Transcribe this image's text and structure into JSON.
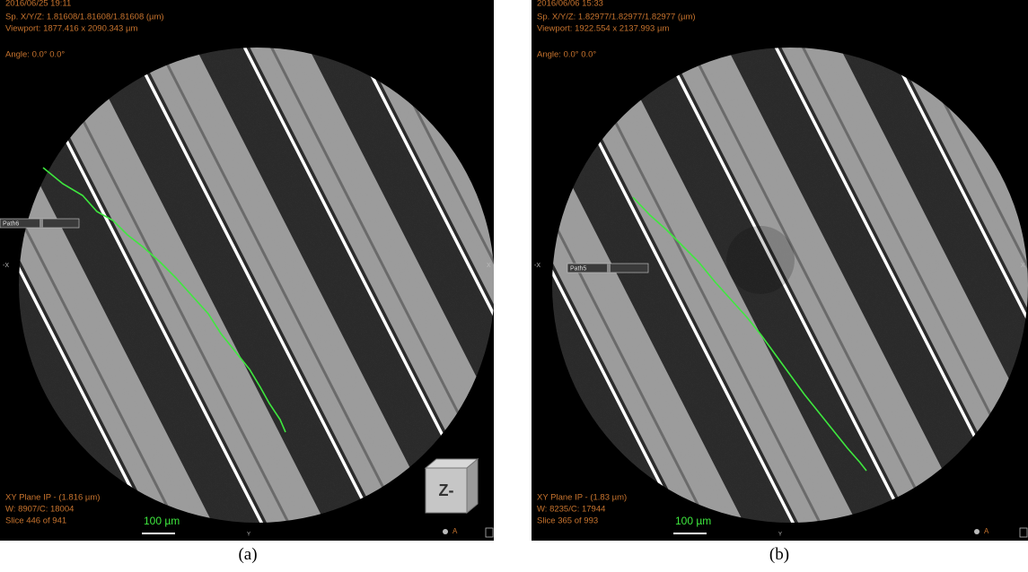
{
  "panels": [
    {
      "caption": "(a)",
      "timestamp": "2016/06/25 19:11",
      "spacing": "Sp. X/Y/Z: 1.81608/1.81608/1.81608 (µm)",
      "viewport": "Viewport: 1877.416 x 2090.343 µm",
      "angle": "Angle: 0.0° 0.0°",
      "path_label": "Path6",
      "axis_left": "-X",
      "axis_right": "X",
      "axis_bottom": "Y",
      "plane": "XY Plane IP - (1.816 µm)",
      "window": "W: 8907/C: 18004",
      "slice": "Slice 446 of 941",
      "scale_bar": "100 µm",
      "orientation": "A",
      "cube_label": "Z-"
    },
    {
      "caption": "(b)",
      "timestamp": "2016/06/06 15:33",
      "spacing": "Sp. X/Y/Z: 1.82977/1.82977/1.82977 (µm)",
      "viewport": "Viewport: 1922.554 x 2137.993 µm",
      "angle": "Angle: 0.0° 0.0°",
      "path_label": "Path5",
      "axis_left": "-X",
      "axis_right": "X",
      "axis_bottom": "Y",
      "plane": "XY Plane IP - (1.83 µm)",
      "window": "W: 8235/C: 17944",
      "slice": "Slice 365 of 993",
      "scale_bar": "100 µm",
      "orientation": "A"
    }
  ]
}
